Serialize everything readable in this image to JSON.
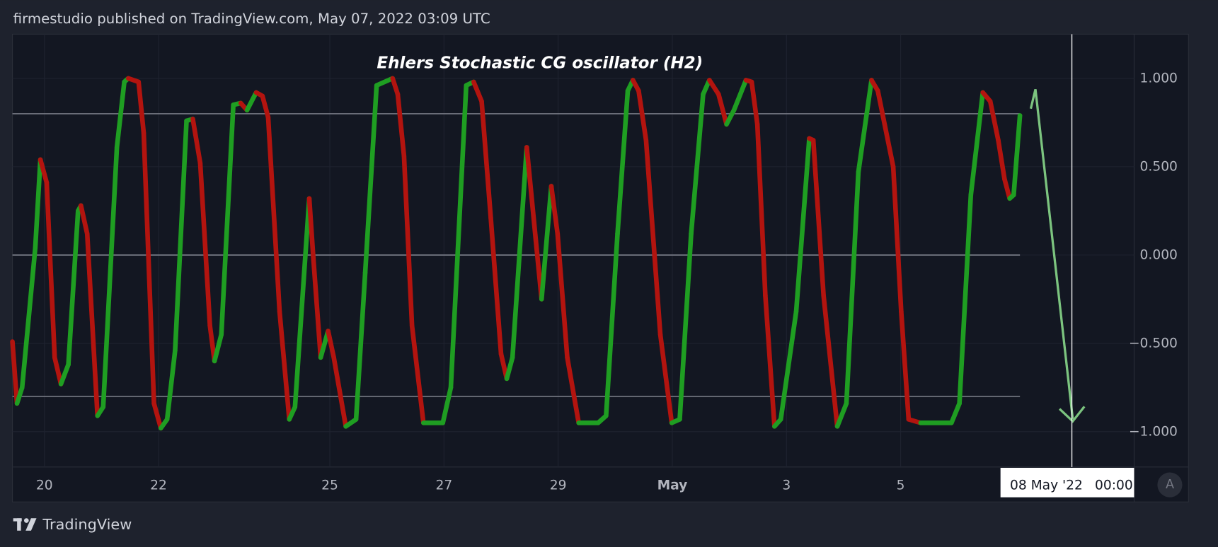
{
  "header": {
    "text": "firmestudio published on TradingView.com, May 07, 2022 03:09 UTC"
  },
  "footer": {
    "brand": "TradingView"
  },
  "chart_data": {
    "type": "line",
    "title": "Ehlers Stochastic CG oscillator (H2)",
    "x": [
      19.44,
      19.52,
      19.61,
      19.84,
      19.93,
      20.04,
      20.18,
      20.29,
      20.42,
      20.59,
      20.64,
      20.75,
      20.93,
      21.03,
      21.27,
      21.4,
      21.47,
      21.65,
      21.74,
      21.92,
      22.04,
      22.15,
      22.29,
      22.49,
      22.6,
      22.73,
      22.9,
      22.98,
      23.1,
      23.31,
      23.44,
      23.55,
      23.71,
      23.82,
      23.92,
      24.12,
      24.29,
      24.39,
      24.64,
      24.71,
      24.84,
      24.97,
      25.07,
      25.28,
      25.46,
      25.62,
      25.82,
      26.1,
      26.19,
      26.3,
      26.44,
      26.64,
      26.98,
      27.12,
      27.39,
      27.52,
      27.66,
      27.82,
      28.0,
      28.1,
      28.2,
      28.45,
      28.61,
      28.71,
      28.88,
      28.99,
      29.16,
      29.36,
      29.7,
      29.84,
      30.04,
      30.22,
      30.31,
      30.41,
      30.54,
      30.79,
      30.99,
      31.13,
      31.33,
      31.54,
      31.65,
      31.81,
      31.95,
      32.08,
      32.29,
      32.39,
      32.49,
      32.63,
      32.79,
      32.9,
      33.17,
      33.4,
      33.47,
      33.65,
      33.89,
      34.05,
      34.26,
      34.49,
      34.6,
      34.87,
      35.01,
      35.14,
      35.35,
      35.89,
      36.03,
      36.23,
      36.44,
      36.57,
      36.71,
      36.82,
      36.91,
      36.98,
      37.09
    ],
    "series": [
      {
        "color": "#1f9e22",
        "down_color": "#b3140f",
        "values": [
          -0.49,
          -0.84,
          -0.75,
          0.04,
          0.54,
          0.41,
          -0.58,
          -0.73,
          -0.62,
          0.25,
          0.28,
          0.12,
          -0.91,
          -0.86,
          0.61,
          0.98,
          1.0,
          0.98,
          0.69,
          -0.84,
          -0.98,
          -0.93,
          -0.54,
          0.76,
          0.77,
          0.52,
          -0.4,
          -0.6,
          -0.45,
          0.85,
          0.86,
          0.82,
          0.92,
          0.9,
          0.78,
          -0.32,
          -0.93,
          -0.86,
          0.32,
          -0.01,
          -0.58,
          -0.43,
          -0.58,
          -0.97,
          -0.93,
          -0.1,
          0.96,
          1.0,
          0.91,
          0.56,
          -0.4,
          -0.95,
          -0.95,
          -0.75,
          0.96,
          0.98,
          0.87,
          0.21,
          -0.56,
          -0.7,
          -0.58,
          0.61,
          0.08,
          -0.25,
          0.39,
          0.12,
          -0.58,
          -0.95,
          -0.95,
          -0.91,
          0.12,
          0.93,
          0.99,
          0.93,
          0.65,
          -0.45,
          -0.95,
          -0.93,
          0.12,
          0.91,
          0.99,
          0.91,
          0.74,
          0.82,
          0.99,
          0.98,
          0.74,
          -0.23,
          -0.97,
          -0.93,
          -0.32,
          0.66,
          0.65,
          -0.23,
          -0.97,
          -0.84,
          0.47,
          0.99,
          0.93,
          0.5,
          -0.32,
          -0.93,
          -0.95,
          -0.95,
          -0.84,
          0.34,
          0.92,
          0.87,
          0.65,
          0.43,
          0.32,
          0.34,
          0.79
        ]
      }
    ],
    "xlim": [
      19.44,
      39.09
    ],
    "xticks": [
      20,
      22,
      25,
      27,
      29,
      {
        "value": 31,
        "label": "May"
      },
      {
        "value": 33,
        "label": "3"
      },
      {
        "value": 35,
        "label": "5"
      }
    ],
    "ylim": [
      -1.2,
      1.25
    ],
    "yticks": [
      {
        "value": 1,
        "label": "1.000"
      },
      {
        "value": 0.5,
        "label": "0.500"
      },
      {
        "value": 0,
        "label": "0.000"
      },
      {
        "value": -0.5,
        "label": "−0.500"
      },
      {
        "value": -1,
        "label": "−1.000"
      }
    ],
    "levels": [
      0.8,
      0,
      -0.8
    ],
    "level_color": "#787b86",
    "grid": true,
    "crosshair": {
      "x": 38,
      "date": "08 May '22",
      "time": "00:00"
    },
    "scale_button": "A"
  }
}
